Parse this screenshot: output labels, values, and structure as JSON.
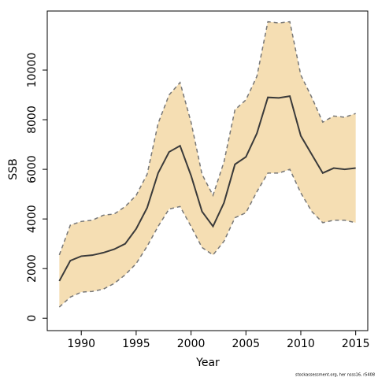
{
  "chart_data": {
    "type": "line",
    "x": [
      1988,
      1989,
      1990,
      1991,
      1992,
      1993,
      1994,
      1995,
      1996,
      1997,
      1998,
      1999,
      2000,
      2001,
      2002,
      2003,
      2004,
      2005,
      2006,
      2007,
      2008,
      2009,
      2010,
      2011,
      2012,
      2013,
      2014,
      2015
    ],
    "values": [
      1500,
      2320,
      2500,
      2540,
      2640,
      2780,
      3000,
      3600,
      4450,
      5850,
      6700,
      6950,
      5750,
      4300,
      3700,
      4650,
      6200,
      6500,
      7450,
      8900,
      8880,
      8950,
      7350,
      6600,
      5850,
      6050,
      6000,
      6050
    ],
    "upper": [
      2550,
      3750,
      3900,
      3950,
      4150,
      4200,
      4500,
      4950,
      5800,
      7850,
      9000,
      9500,
      7900,
      5800,
      4950,
      6300,
      8400,
      8800,
      9750,
      11950,
      11900,
      11950,
      9800,
      8900,
      7900,
      8150,
      8100,
      8250
    ],
    "lower": [
      450,
      850,
      1050,
      1080,
      1170,
      1400,
      1750,
      2200,
      2900,
      3700,
      4400,
      4500,
      3700,
      2850,
      2550,
      3100,
      4050,
      4250,
      5100,
      5850,
      5850,
      6000,
      5050,
      4300,
      3850,
      3950,
      3950,
      3850
    ],
    "line_color": "#3a3a3a",
    "band_color": "#f5deb3",
    "band_edge_color": "#777777",
    "xlabel": "Year",
    "ylabel": "SSB",
    "xlim": [
      1986.9,
      2016.1
    ],
    "xticks": [
      1990,
      1995,
      2000,
      2005,
      2010,
      2015
    ],
    "ylim": [
      -500,
      12380
    ],
    "yticks": [
      0,
      2000,
      4000,
      6000,
      8000,
      10000
    ],
    "credit": "stockassessment.org, her nsss16, r5408"
  }
}
